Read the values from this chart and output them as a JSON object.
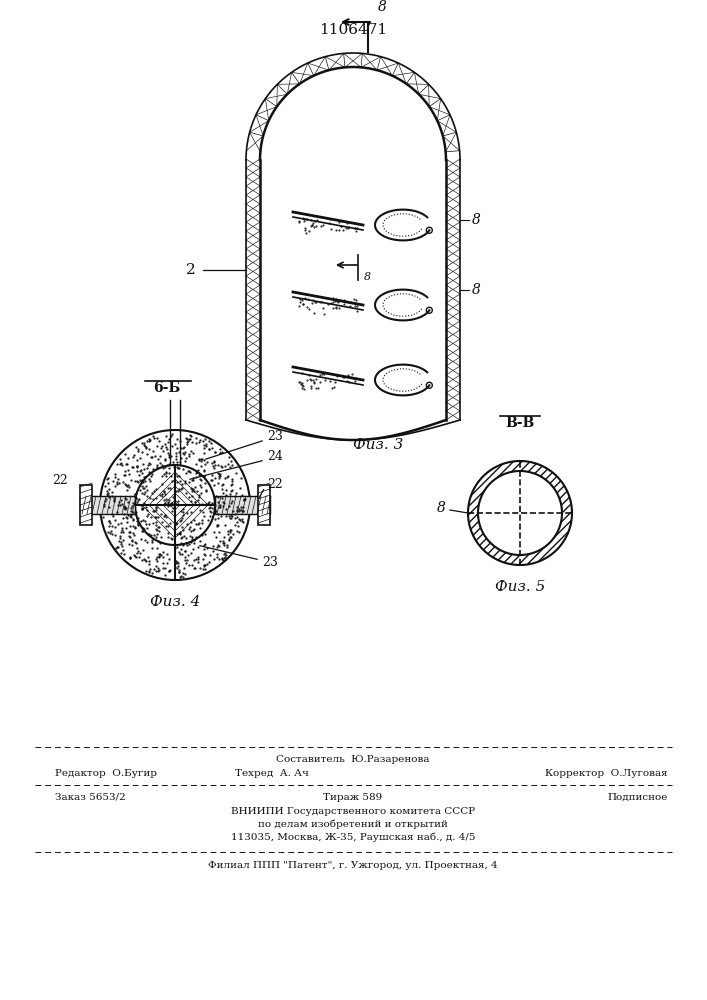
{
  "patent_number": "1106471",
  "fig3_label": "Физ. 3",
  "fig4_label": "Физ. 4",
  "fig5_label": "Физ. 5",
  "section_6b": "6-Б",
  "section_bb": "В-В",
  "lc": "#111111",
  "footer_composer": "Составитель  Ю.Разаренова",
  "footer_editor": "Редактор  О.Бугир",
  "footer_techred": "Техред  А. Ач",
  "footer_corrector": "Корректор  О.Луговая",
  "footer_order": "Заказ 5653/2",
  "footer_print": "Тираж 589",
  "footer_subscription": "Подписное",
  "footer_vniip1": "ВНИИПИ Государственного комитета СССР",
  "footer_vniip2": "по делам изобретений и открытий",
  "footer_address": "113035, Москва, Ж-35, Раушская наб., д. 4/5",
  "footer_filial": "Филиал ППП \"Патент\", г. Ужгород, ул. Проектная, 4"
}
